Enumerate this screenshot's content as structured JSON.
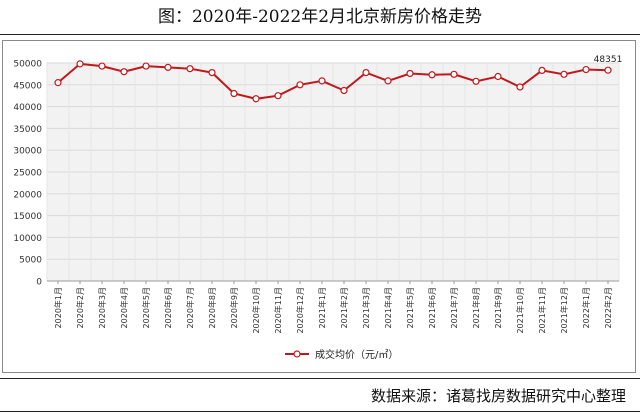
{
  "header": {
    "title": "图：2020年-2022年2月北京新房价格走势"
  },
  "footer": {
    "source": "数据来源：诸葛找房数据研究中心整理"
  },
  "colors": {
    "series": "#c0181c",
    "grid": "#d9d9d9",
    "plot_bg": "#f2f2f2",
    "axis_text": "#333333"
  },
  "chart_data": {
    "type": "line",
    "title": "",
    "xlabel": "",
    "ylabel": "",
    "ylim": [
      0,
      50000
    ],
    "yticks": [
      0,
      5000,
      10000,
      15000,
      20000,
      25000,
      30000,
      35000,
      40000,
      45000,
      50000
    ],
    "grid": "horizontal",
    "legend_position": "bottom-center",
    "categories": [
      "2020年1月",
      "2020年2月",
      "2020年3月",
      "2020年4月",
      "2020年5月",
      "2020年6月",
      "2020年7月",
      "2020年8月",
      "2020年9月",
      "2020年10月",
      "2020年11月",
      "2020年12月",
      "2021年1月",
      "2021年2月",
      "2021年3月",
      "2021年4月",
      "2021年5月",
      "2021年6月",
      "2021年7月",
      "2021年8月",
      "2021年9月",
      "2021年10月",
      "2021年11月",
      "2021年12月",
      "2022年1月",
      "2022年2月"
    ],
    "series": [
      {
        "name": "成交均价（元/㎡）",
        "values": [
          45500,
          49800,
          49300,
          48000,
          49300,
          49000,
          48700,
          47800,
          43000,
          41800,
          42500,
          45000,
          45900,
          43700,
          47800,
          45900,
          47600,
          47300,
          47400,
          45800,
          46900,
          44500,
          48300,
          47400,
          48500,
          48351
        ]
      }
    ],
    "annotations": [
      {
        "category": "2022年2月",
        "text": "48351"
      }
    ]
  }
}
